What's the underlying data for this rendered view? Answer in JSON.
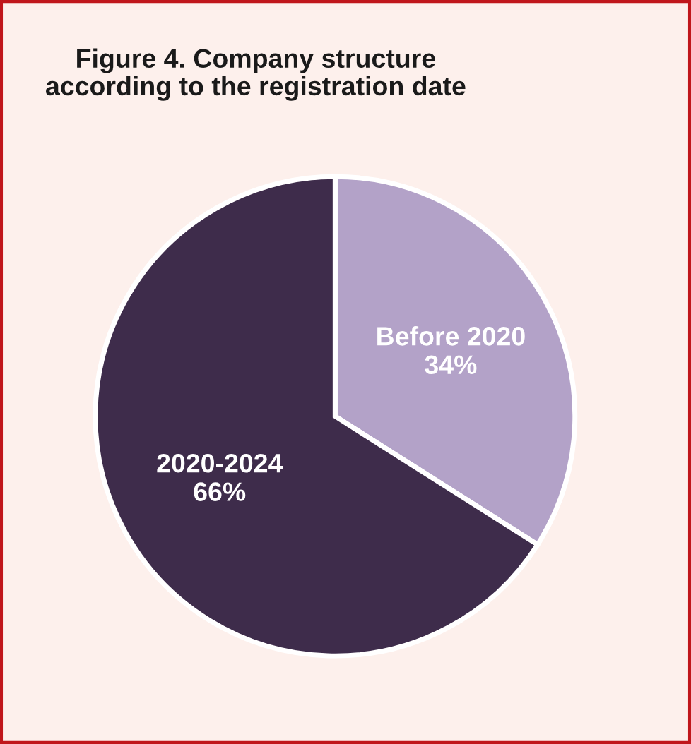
{
  "chart_data": {
    "type": "pie",
    "title": "Figure 4. Company structure\naccording to the registration date",
    "categories": [
      "Before 2020",
      "2020-2024"
    ],
    "values": [
      34,
      66
    ],
    "colors": [
      "#b3a2c8",
      "#3e2c4b"
    ],
    "value_labels": [
      "34%",
      "66%"
    ],
    "legend": false
  }
}
